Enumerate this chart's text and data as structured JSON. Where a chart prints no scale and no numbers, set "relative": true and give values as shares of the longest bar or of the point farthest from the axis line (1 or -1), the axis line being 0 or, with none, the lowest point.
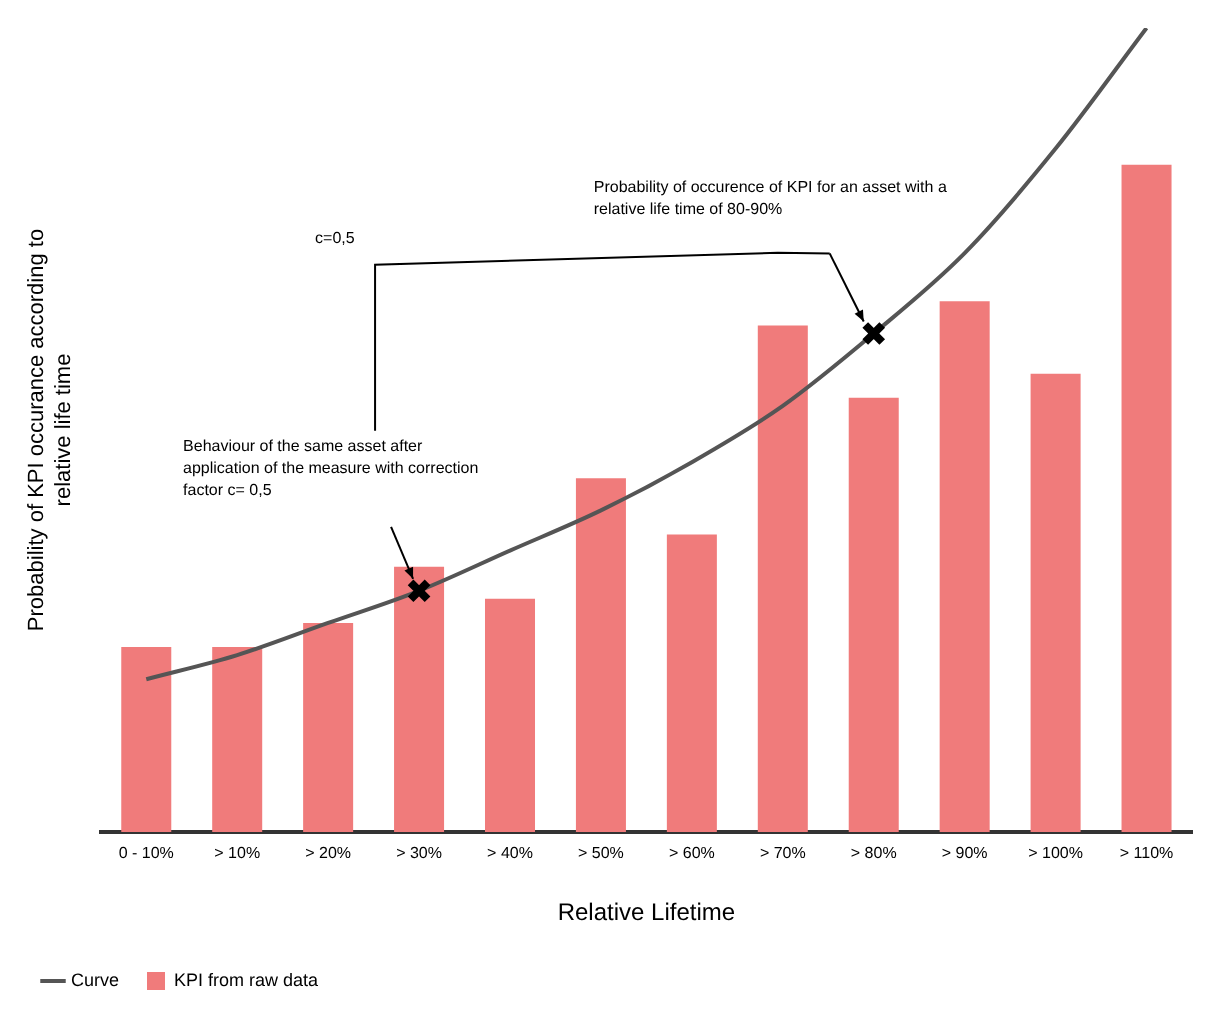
{
  "chart_data": {
    "type": "bar",
    "relative": true,
    "xlabel": "Relative Lifetime",
    "ylabel": "Probability of KPI occurance according to relative life time",
    "categories": [
      "0 - 10%",
      "> 10%",
      "> 20%",
      "> 30%",
      "> 40%",
      "> 50%",
      "> 60%",
      "> 70%",
      "> 80%",
      "> 90%",
      "> 100%",
      "> 110%"
    ],
    "series": [
      {
        "name": "Curve",
        "type": "line",
        "color": "#555555",
        "values": [
          0.19,
          0.22,
          0.26,
          0.3,
          0.35,
          0.4,
          0.46,
          0.53,
          0.62,
          0.72,
          0.85,
          1
        ]
      },
      {
        "name": "KPI from raw data",
        "color": "#f07b7b",
        "values": [
          0.23,
          0.23,
          0.26,
          0.33,
          0.29,
          0.44,
          0.37,
          0.63,
          0.54,
          0.66,
          0.57,
          0.83
        ]
      },
      {
        "type": "scatter",
        "color": "#000000",
        "marker": "cross",
        "x": [
          "> 30%",
          "> 80%"
        ],
        "values": [
          0.3,
          0.62
        ]
      }
    ],
    "annotations": [
      "Probability of occurence of KPI for an asset with a relative life time of 80-90%",
      "Behaviour of the same asset after application of the measure with correction factor c= 0,5",
      "c=0,5"
    ],
    "legend": "bottom left",
    "grid": false
  }
}
